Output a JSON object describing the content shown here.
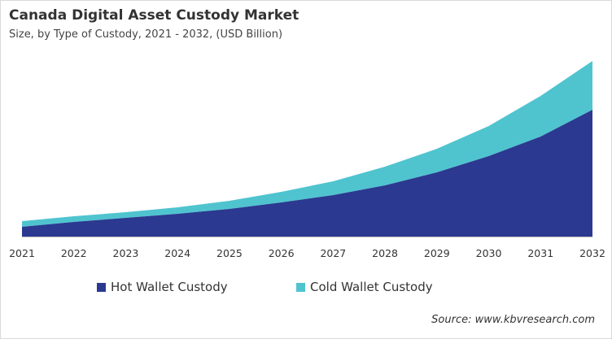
{
  "chart_data": {
    "type": "area",
    "stacked": true,
    "title": "Canada Digital Asset Custody Market",
    "subtitle": "Size, by Type of Custody, 2021 - 2032, (USD Billion)",
    "x": [
      "2021",
      "2022",
      "2023",
      "2024",
      "2025",
      "2026",
      "2027",
      "2028",
      "2029",
      "2030",
      "2031",
      "2032"
    ],
    "series": [
      {
        "name": "Hot Wallet Custody",
        "color": "#2b3990",
        "values": [
          12,
          18,
          23,
          28,
          34,
          42,
          51,
          63,
          79,
          99,
          123,
          156
        ]
      },
      {
        "name": "Cold Wallet Custody",
        "color": "#4fc4cf",
        "values": [
          7,
          7,
          7,
          8,
          10,
          13,
          17,
          23,
          29,
          37,
          50,
          60
        ]
      }
    ],
    "y_axis_shown": false,
    "grid": false,
    "legend_position": "bottom",
    "source": "Source: www.kbvresearch.com"
  }
}
